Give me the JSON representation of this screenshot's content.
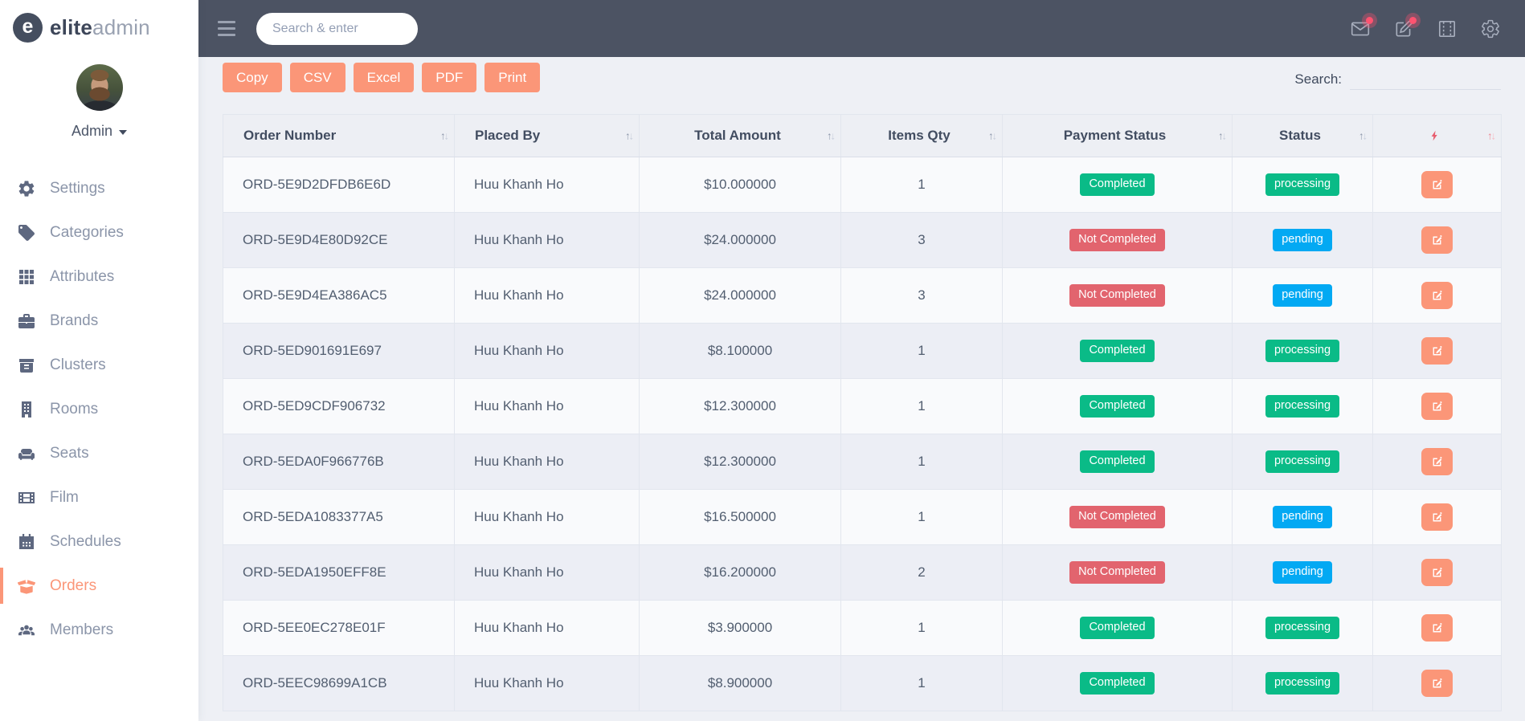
{
  "brand": {
    "logo_letter": "e",
    "name_bold": "elite",
    "name_light": "admin"
  },
  "user": {
    "name": "Admin"
  },
  "navbar": {
    "search_placeholder": "Search & enter",
    "icons": [
      {
        "name": "mail-icon",
        "badge": true
      },
      {
        "name": "compose-icon",
        "badge": true
      },
      {
        "name": "columns-icon",
        "badge": false
      },
      {
        "name": "gear-icon",
        "badge": false
      }
    ]
  },
  "sidebar": {
    "items": [
      {
        "label": "Settings",
        "icon": "gears",
        "active": false
      },
      {
        "label": "Categories",
        "icon": "tags",
        "active": false
      },
      {
        "label": "Attributes",
        "icon": "grid",
        "active": false
      },
      {
        "label": "Brands",
        "icon": "briefcase",
        "active": false
      },
      {
        "label": "Clusters",
        "icon": "archive",
        "active": false
      },
      {
        "label": "Rooms",
        "icon": "building",
        "active": false
      },
      {
        "label": "Seats",
        "icon": "couch",
        "active": false
      },
      {
        "label": "Film",
        "icon": "film",
        "active": false
      },
      {
        "label": "Schedules",
        "icon": "calendar",
        "active": false
      },
      {
        "label": "Orders",
        "icon": "box-open",
        "active": true
      },
      {
        "label": "Members",
        "icon": "users",
        "active": false
      }
    ]
  },
  "toolbar": {
    "export_buttons": [
      "Copy",
      "CSV",
      "Excel",
      "PDF",
      "Print"
    ],
    "search_label": "Search:",
    "search_value": ""
  },
  "table": {
    "columns": [
      {
        "label": "Order Number",
        "align": "left",
        "icon": null
      },
      {
        "label": "Placed By",
        "align": "left",
        "icon": null
      },
      {
        "label": "Total Amount",
        "align": "center",
        "icon": null
      },
      {
        "label": "Items Qty",
        "align": "center",
        "icon": null
      },
      {
        "label": "Payment Status",
        "align": "center",
        "icon": null
      },
      {
        "label": "Status",
        "align": "center",
        "icon": null
      },
      {
        "label": "",
        "align": "center",
        "icon": "bolt-icon"
      }
    ],
    "rows": [
      {
        "order_number": "ORD-5E9D2DFDB6E6D",
        "placed_by": "Huu Khanh Ho",
        "total_amount": "$10.000000",
        "items_qty": "1",
        "payment_status": "Completed",
        "payment_color": "success",
        "status": "processing",
        "status_color": "success"
      },
      {
        "order_number": "ORD-5E9D4E80D92CE",
        "placed_by": "Huu Khanh Ho",
        "total_amount": "$24.000000",
        "items_qty": "3",
        "payment_status": "Not Completed",
        "payment_color": "danger",
        "status": "pending",
        "status_color": "info"
      },
      {
        "order_number": "ORD-5E9D4EA386AC5",
        "placed_by": "Huu Khanh Ho",
        "total_amount": "$24.000000",
        "items_qty": "3",
        "payment_status": "Not Completed",
        "payment_color": "danger",
        "status": "pending",
        "status_color": "info"
      },
      {
        "order_number": "ORD-5ED901691E697",
        "placed_by": "Huu Khanh Ho",
        "total_amount": "$8.100000",
        "items_qty": "1",
        "payment_status": "Completed",
        "payment_color": "success",
        "status": "processing",
        "status_color": "success"
      },
      {
        "order_number": "ORD-5ED9CDF906732",
        "placed_by": "Huu Khanh Ho",
        "total_amount": "$12.300000",
        "items_qty": "1",
        "payment_status": "Completed",
        "payment_color": "success",
        "status": "processing",
        "status_color": "success"
      },
      {
        "order_number": "ORD-5EDA0F966776B",
        "placed_by": "Huu Khanh Ho",
        "total_amount": "$12.300000",
        "items_qty": "1",
        "payment_status": "Completed",
        "payment_color": "success",
        "status": "processing",
        "status_color": "success"
      },
      {
        "order_number": "ORD-5EDA1083377A5",
        "placed_by": "Huu Khanh Ho",
        "total_amount": "$16.500000",
        "items_qty": "1",
        "payment_status": "Not Completed",
        "payment_color": "danger",
        "status": "pending",
        "status_color": "info"
      },
      {
        "order_number": "ORD-5EDA1950EFF8E",
        "placed_by": "Huu Khanh Ho",
        "total_amount": "$16.200000",
        "items_qty": "2",
        "payment_status": "Not Completed",
        "payment_color": "danger",
        "status": "pending",
        "status_color": "info"
      },
      {
        "order_number": "ORD-5EE0EC278E01F",
        "placed_by": "Huu Khanh Ho",
        "total_amount": "$3.900000",
        "items_qty": "1",
        "payment_status": "Completed",
        "payment_color": "success",
        "status": "processing",
        "status_color": "success"
      },
      {
        "order_number": "ORD-5EEC98699A1CB",
        "placed_by": "Huu Khanh Ho",
        "total_amount": "$8.900000",
        "items_qty": "1",
        "payment_status": "Completed",
        "payment_color": "success",
        "status": "processing",
        "status_color": "success"
      }
    ]
  },
  "colors": {
    "accent_orange": "#fb9678",
    "success": "#0abb87",
    "danger": "#e2646e",
    "info": "#03a9f3",
    "navbar_bg": "#4c5363",
    "page_bg": "#eef0f5",
    "pulse": "#ff5370",
    "bolt": "#e75f70"
  }
}
